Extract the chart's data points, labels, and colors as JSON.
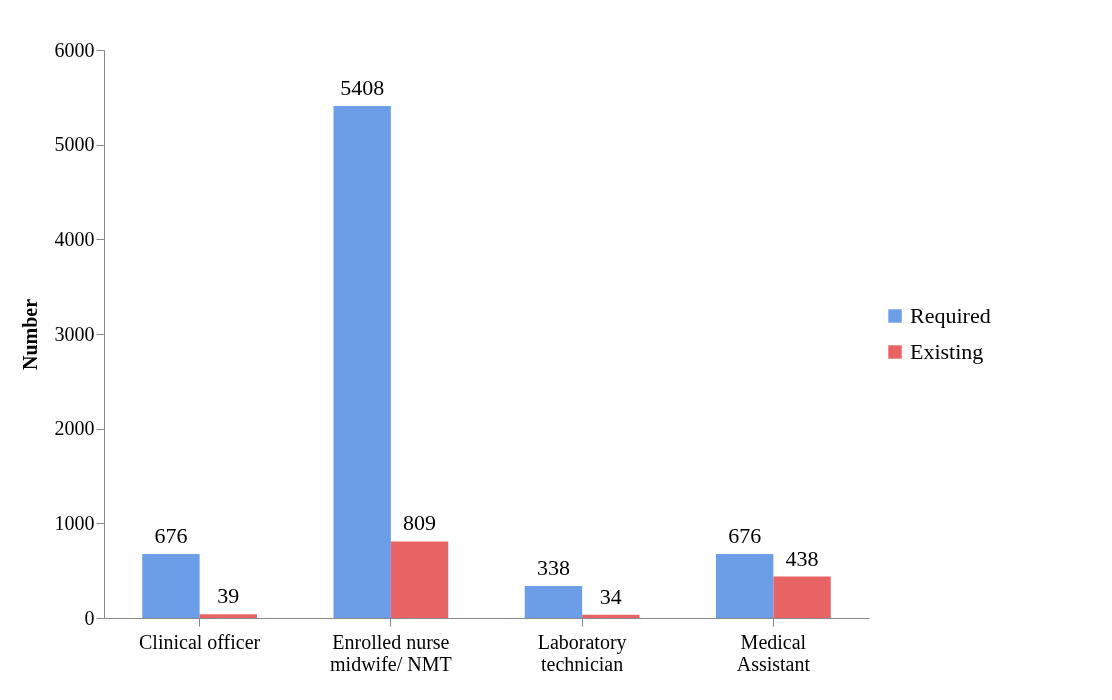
{
  "chart_data": {
    "type": "bar",
    "ylabel": "Number",
    "categories": [
      "Clinical officer",
      "Enrolled nurse midwife/ NMT",
      "Laboratory technician",
      "Medical Assistant"
    ],
    "series": [
      {
        "name": "Required",
        "color": "#6b9ee6",
        "values": [
          676,
          5408,
          338,
          676
        ]
      },
      {
        "name": "Existing",
        "color": "#e86464",
        "values": [
          39,
          809,
          34,
          438
        ]
      }
    ],
    "ylim": [
      0,
      6000
    ],
    "yticks": [
      0,
      1000,
      2000,
      3000,
      4000,
      5000,
      6000
    ],
    "grid": false,
    "legend": "right",
    "data_labels": true
  }
}
